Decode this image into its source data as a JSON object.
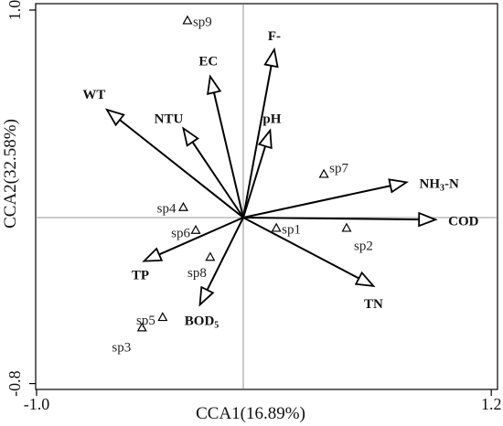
{
  "chart_data": {
    "type": "scatter",
    "xlabel": "CCA1(16.89%)",
    "ylabel": "CCA2(32.58%)",
    "xlim": [
      -1.0,
      1.2
    ],
    "ylim": [
      -0.8,
      1.0
    ],
    "x_tick_labels": [
      "-1.0",
      "1.2"
    ],
    "y_tick_labels": [
      "1.0",
      "-0.8"
    ],
    "grid": false,
    "reference_lines": "x=0 and y=0",
    "env_vectors": [
      {
        "label": "WT",
        "sub": "",
        "x": -0.66,
        "y": 0.52
      },
      {
        "label": "EC",
        "sub": "",
        "x": -0.16,
        "y": 0.68
      },
      {
        "label": "NTU",
        "sub": "",
        "x": -0.29,
        "y": 0.43
      },
      {
        "label": "F-",
        "sub": "",
        "x": 0.15,
        "y": 0.81
      },
      {
        "label": "pH",
        "sub": "",
        "x": 0.13,
        "y": 0.42
      },
      {
        "label": "NH",
        "sub": "3",
        "suffix": "-N",
        "x": 0.79,
        "y": 0.17
      },
      {
        "label": "COD",
        "sub": "",
        "x": 0.93,
        "y": -0.01
      },
      {
        "label": "TN",
        "sub": "",
        "x": 0.63,
        "y": -0.33
      },
      {
        "label": "TP",
        "sub": "",
        "x": -0.48,
        "y": -0.21
      },
      {
        "label": "BOD",
        "sub": "5",
        "x": -0.21,
        "y": -0.42
      }
    ],
    "sites": [
      {
        "label": "sp1",
        "x": 0.16,
        "y": -0.05
      },
      {
        "label": "sp2",
        "x": 0.5,
        "y": -0.05
      },
      {
        "label": "sp3",
        "x": -0.49,
        "y": -0.53
      },
      {
        "label": "sp4",
        "x": -0.29,
        "y": 0.05
      },
      {
        "label": "sp5",
        "x": -0.39,
        "y": -0.48
      },
      {
        "label": "sp6",
        "x": -0.23,
        "y": -0.06
      },
      {
        "label": "sp7",
        "x": 0.39,
        "y": 0.21
      },
      {
        "label": "sp8",
        "x": -0.16,
        "y": -0.19
      },
      {
        "label": "sp9",
        "x": -0.27,
        "y": 0.95
      }
    ]
  }
}
